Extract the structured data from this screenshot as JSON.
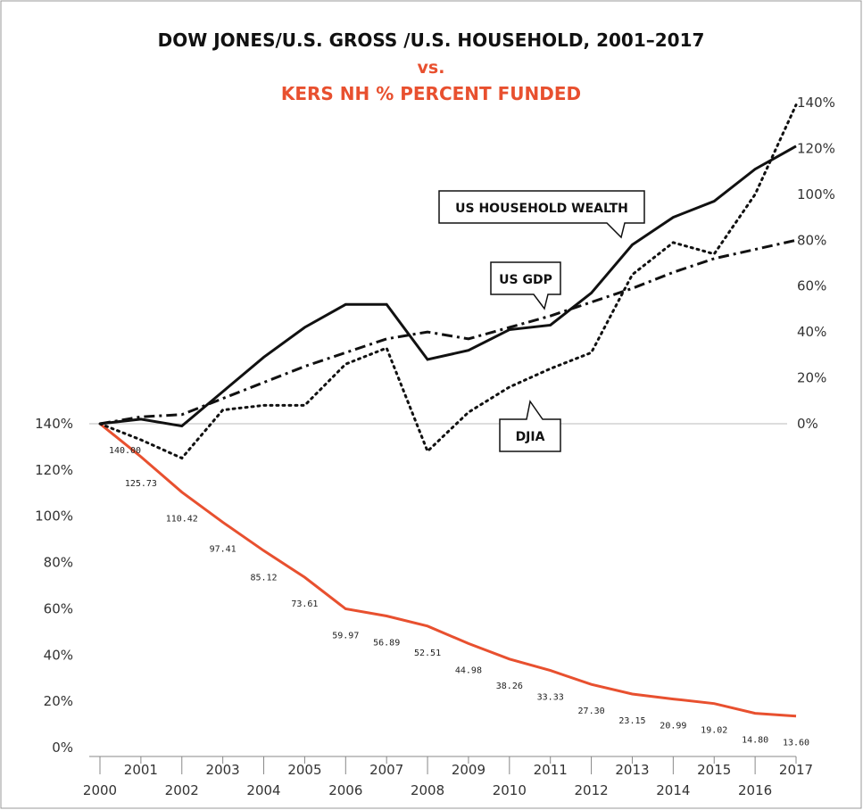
{
  "chart_data": {
    "type": "line",
    "title": "DOW JONES/U.S. GROSS /U.S. HOUSEHOLD, 2001–2017",
    "subtitle": "vs.",
    "title2": "KERS NH % PERCENT FUNDED",
    "x": [
      2000,
      2001,
      2002,
      2003,
      2004,
      2005,
      2006,
      2007,
      2008,
      2009,
      2010,
      2011,
      2012,
      2013,
      2014,
      2015,
      2016,
      2017
    ],
    "xlim": [
      2000,
      2017
    ],
    "xticks": [
      2000,
      2001,
      2002,
      2003,
      2004,
      2005,
      2006,
      2007,
      2008,
      2009,
      2010,
      2011,
      2012,
      2013,
      2014,
      2015,
      2016,
      2017
    ],
    "ylim": [
      0,
      140
    ],
    "yticks": [
      {
        "value": 0,
        "label": "0%"
      },
      {
        "value": 20,
        "label": "20%"
      },
      {
        "value": 40,
        "label": "40%"
      },
      {
        "value": 60,
        "label": "60%"
      },
      {
        "value": 80,
        "label": "80%"
      },
      {
        "value": 100,
        "label": "100%"
      },
      {
        "value": 120,
        "label": "120%"
      },
      {
        "value": 140,
        "label": "140%"
      }
    ],
    "y2lim": [
      0,
      140
    ],
    "y2ticks": [
      {
        "value": 0,
        "label": "0%"
      },
      {
        "value": 20,
        "label": "20%"
      },
      {
        "value": 40,
        "label": "40%"
      },
      {
        "value": 60,
        "label": "60%"
      },
      {
        "value": 80,
        "label": "80%"
      },
      {
        "value": 100,
        "label": "100%"
      },
      {
        "value": 120,
        "label": "120%"
      },
      {
        "value": 140,
        "label": "140%"
      }
    ],
    "series": [
      {
        "name": "KERS NH % PERCENT FUNDED",
        "color": "#e8502f",
        "style": "solid",
        "axis": "y",
        "values": [
          140.0,
          125.73,
          110.42,
          97.41,
          85.12,
          73.61,
          59.97,
          56.89,
          52.51,
          44.98,
          38.26,
          33.33,
          27.3,
          23.15,
          20.99,
          19.02,
          14.8,
          13.6
        ],
        "value_labels": [
          "140.00",
          "125.73",
          "110.42",
          "97.41",
          "85.12",
          "73.61",
          "59.97",
          "56.89",
          "52.51",
          "44.98",
          "38.26",
          "33.33",
          "27.30",
          "23.15",
          "20.99",
          "19.02",
          "14.80",
          "13.60"
        ]
      },
      {
        "name": "US HOUSEHOLD WEALTH",
        "color": "#111111",
        "style": "solid",
        "axis": "y2",
        "values": [
          0,
          2,
          -1,
          14,
          29,
          42,
          52,
          52,
          28,
          32,
          41,
          43,
          57,
          78,
          90,
          97,
          111,
          121
        ]
      },
      {
        "name": "US GDP",
        "color": "#111111",
        "style": "dashdot",
        "axis": "y2",
        "values": [
          0,
          3,
          4,
          11,
          18,
          25,
          31,
          37,
          40,
          37,
          42,
          47,
          53,
          59,
          66,
          72,
          76,
          80
        ]
      },
      {
        "name": "DJIA",
        "color": "#111111",
        "style": "dotted",
        "axis": "y2",
        "values": [
          0,
          -7,
          -15,
          6,
          8,
          8,
          26,
          33,
          -12,
          5,
          16,
          24,
          31,
          65,
          79,
          74,
          100,
          139
        ]
      }
    ]
  }
}
